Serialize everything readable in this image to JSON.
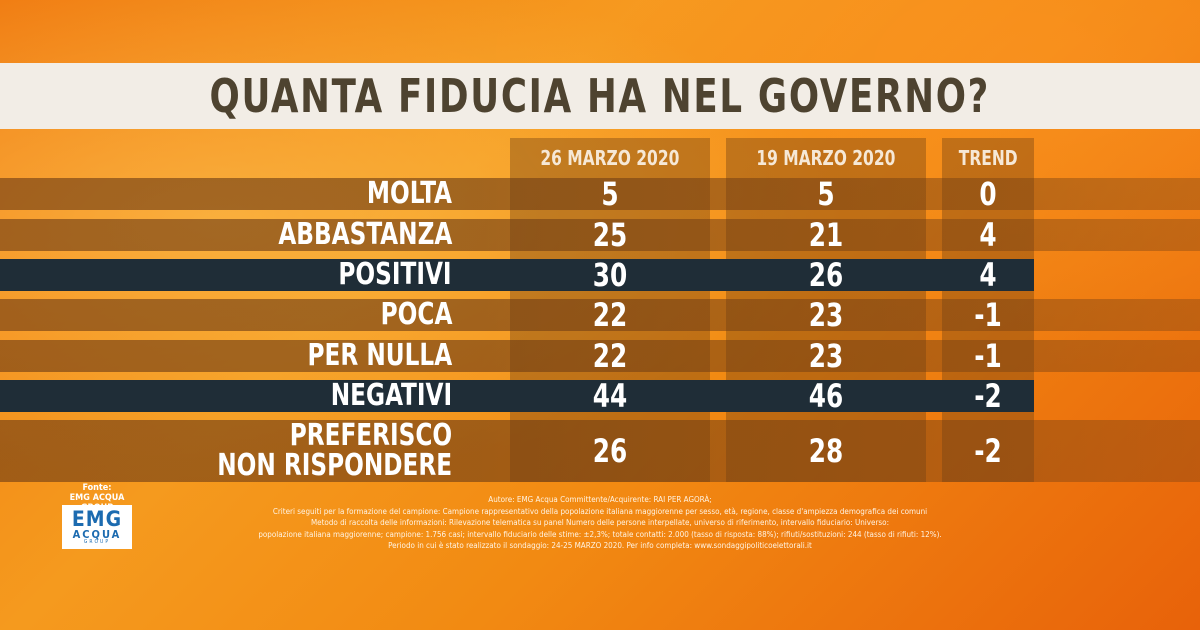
{
  "title": "QUANTA FIDUCIA HA NEL GOVERNO?",
  "columns": [
    "26 MARZO 2020",
    "19 MARZO 2020",
    "TREND"
  ],
  "rows": [
    {
      "label": "MOLTA",
      "v1": "5",
      "v2": "5",
      "trend": "0",
      "highlight": false
    },
    {
      "label": "ABBASTANZA",
      "v1": "25",
      "v2": "21",
      "trend": "4",
      "highlight": false
    },
    {
      "label": "POSITIVI",
      "v1": "30",
      "v2": "26",
      "trend": "4",
      "highlight": true
    },
    {
      "label": "POCA",
      "v1": "22",
      "v2": "23",
      "trend": "-1",
      "highlight": false
    },
    {
      "label": "PER NULLA",
      "v1": "22",
      "v2": "23",
      "trend": "-1",
      "highlight": false
    },
    {
      "label": "NEGATIVI",
      "v1": "44",
      "v2": "46",
      "trend": "-2",
      "highlight": true
    },
    {
      "label": "PREFERISCO\nNON RISPONDERE",
      "v1": "26",
      "v2": "28",
      "trend": "-2",
      "highlight": false
    }
  ],
  "chart_data": {
    "type": "table",
    "title": "QUANTA FIDUCIA HA NEL GOVERNO?",
    "categories": [
      "MOLTA",
      "ABBASTANZA",
      "POSITIVI",
      "POCA",
      "PER NULLA",
      "NEGATIVI",
      "PREFERISCO NON RISPONDERE"
    ],
    "series": [
      {
        "name": "26 MARZO 2020",
        "values": [
          5,
          25,
          30,
          22,
          22,
          44,
          26
        ]
      },
      {
        "name": "19 MARZO 2020",
        "values": [
          5,
          21,
          26,
          23,
          23,
          46,
          28
        ]
      },
      {
        "name": "TREND",
        "values": [
          0,
          4,
          4,
          -1,
          -1,
          -2,
          -2
        ]
      }
    ]
  },
  "source": {
    "label": "Fonte:\nEMG ACQUA GROUP",
    "logo_main": "EMG",
    "logo_sub": "ACQUA",
    "logo_tiny": "GROUP"
  },
  "footnote": [
    "Autore: EMG Acqua Committente/Acquirente: RAI PER AGORÀ;",
    "Criteri seguiti per la formazione del campione: Campione rappresentativo della popolazione italiana maggiorenne per sesso, età, regione, classe d'ampiezza demografica dei comuni",
    "Metodo di raccolta delle informazioni: Rilevazione telematica su panel Numero delle persone interpellate, universo di riferimento, intervallo fiduciario: Universo:",
    "popolazione italiana maggiorenne; campione: 1.756 casi; intervallo fiduciario delle stime: ±2,3%; totale contatti: 2.000 (tasso di risposta: 88%); rifiuti/sostituzioni: 244 (tasso di rifiuti: 12%).",
    "Periodo in cui è stato realizzato il sondaggio: 24-25 MARZO 2020. Per info completa: www.sondaggipoliticoelettorali.it"
  ],
  "colors": {
    "normal_row": "#7a4a1e",
    "highlight_row": "#1f2d37",
    "title_text": "#4e4330"
  }
}
